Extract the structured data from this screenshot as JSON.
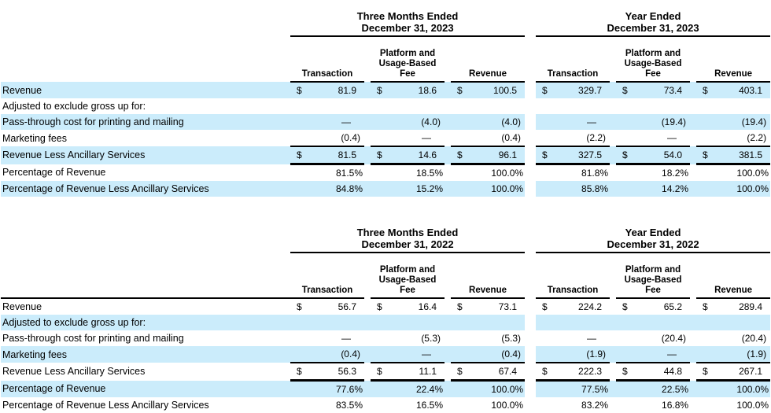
{
  "palette": {
    "row_highlight": "#cbecfb",
    "line_color": "#000000",
    "text_color": "#000000",
    "background": "#ffffff"
  },
  "currency_symbol": "$",
  "tables": [
    {
      "name": "revenue-disaggregation-2023",
      "groups": [
        {
          "title": [
            "Three Months Ended",
            "December 31, 2023"
          ]
        },
        {
          "title": [
            "Year Ended",
            "December 31, 2023"
          ]
        }
      ],
      "columns": [
        [
          "Transaction"
        ],
        [
          "Platform and",
          "Usage-Based",
          "Fee"
        ],
        [
          "Revenue"
        ]
      ],
      "label_header_underline": false,
      "rows": [
        {
          "label": "Revenue",
          "dollar": true,
          "shaded": true,
          "rule": "none",
          "values": [
            "81.9",
            "18.6",
            "100.5",
            "329.7",
            "73.4",
            "403.1"
          ]
        },
        {
          "label": "Adjusted to exclude gross up for:",
          "dollar": false,
          "shaded": false,
          "rule": "none",
          "values": [
            "",
            "",
            "",
            "",
            "",
            ""
          ]
        },
        {
          "label": "Pass-through cost for printing and mailing",
          "dollar": false,
          "shaded": true,
          "rule": "none",
          "values": [
            "—",
            "(4.0)",
            "(4.0)",
            "—",
            "(19.4)",
            "(19.4)"
          ]
        },
        {
          "label": "Marketing fees",
          "dollar": false,
          "shaded": false,
          "rule": "single",
          "values": [
            "(0.4)",
            "—",
            "(0.4)",
            "(2.2)",
            "—",
            "(2.2)"
          ]
        },
        {
          "label": "Revenue Less Ancillary Services",
          "dollar": true,
          "shaded": true,
          "rule": "thick",
          "values": [
            "81.5",
            "14.6",
            "96.1",
            "327.5",
            "54.0",
            "381.5"
          ]
        },
        {
          "label": "Percentage of Revenue",
          "dollar": false,
          "shaded": false,
          "rule": "none",
          "values": [
            "81.5%",
            "18.5%",
            "100.0%",
            "81.8%",
            "18.2%",
            "100.0%"
          ]
        },
        {
          "label": "Percentage of Revenue Less Ancillary Services",
          "dollar": false,
          "shaded": true,
          "rule": "none",
          "values": [
            "84.8%",
            "15.2%",
            "100.0%",
            "85.8%",
            "14.2%",
            "100.0%"
          ]
        }
      ]
    },
    {
      "name": "revenue-disaggregation-2022",
      "groups": [
        {
          "title": [
            "Three Months Ended",
            "December 31, 2022"
          ]
        },
        {
          "title": [
            "Year Ended",
            "December 31, 2022"
          ]
        }
      ],
      "columns": [
        [
          "Transaction"
        ],
        [
          "Platform and",
          "Usage-Based",
          "Fee"
        ],
        [
          "Revenue"
        ]
      ],
      "label_header_underline": true,
      "rows": [
        {
          "label": "Revenue",
          "dollar": true,
          "shaded": false,
          "rule": "none",
          "values": [
            "56.7",
            "16.4",
            "73.1",
            "224.2",
            "65.2",
            "289.4"
          ]
        },
        {
          "label": "Adjusted to exclude gross up for:",
          "dollar": false,
          "shaded": true,
          "rule": "none",
          "values": [
            "",
            "",
            "",
            "",
            "",
            ""
          ]
        },
        {
          "label": "Pass-through cost for printing and mailing",
          "dollar": false,
          "shaded": false,
          "rule": "none",
          "values": [
            "—",
            "(5.3)",
            "(5.3)",
            "—",
            "(20.4)",
            "(20.4)"
          ]
        },
        {
          "label": "Marketing fees",
          "dollar": false,
          "shaded": true,
          "rule": "single",
          "values": [
            "(0.4)",
            "—",
            "(0.4)",
            "(1.9)",
            "—",
            "(1.9)"
          ]
        },
        {
          "label": "Revenue Less Ancillary Services",
          "dollar": true,
          "shaded": false,
          "rule": "thick",
          "values": [
            "56.3",
            "11.1",
            "67.4",
            "222.3",
            "44.8",
            "267.1"
          ]
        },
        {
          "label": "Percentage of Revenue",
          "dollar": false,
          "shaded": true,
          "rule": "none",
          "values": [
            "77.6%",
            "22.4%",
            "100.0%",
            "77.5%",
            "22.5%",
            "100.0%"
          ]
        },
        {
          "label": "Percentage of Revenue Less Ancillary Services",
          "dollar": false,
          "shaded": false,
          "rule": "none",
          "values": [
            "83.5%",
            "16.5%",
            "100.0%",
            "83.2%",
            "16.8%",
            "100.0%"
          ]
        }
      ]
    }
  ]
}
